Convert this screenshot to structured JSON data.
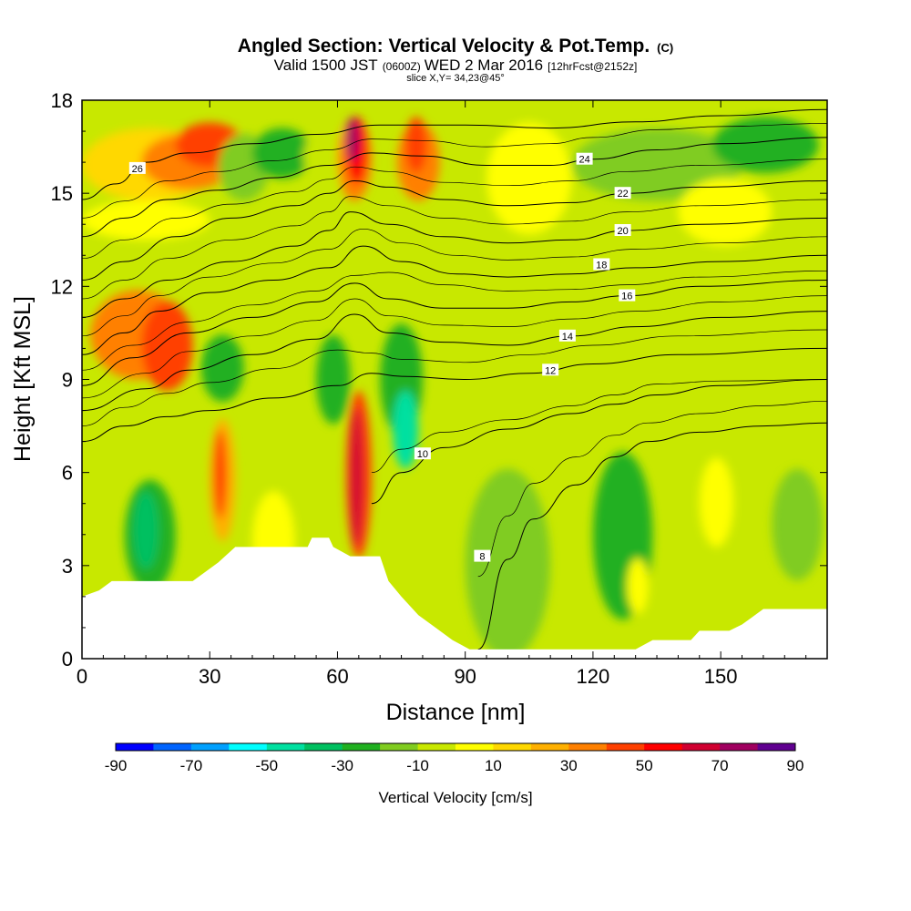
{
  "chart_data": {
    "type": "heatmap",
    "title": "Angled Section: Vertical Velocity & Pot.Temp.",
    "title_unit": "(C)",
    "subtitle_main": "Valid 1500 JST",
    "subtitle_utc": "(0600Z)",
    "subtitle_date": "WED 2 Mar 2016",
    "subtitle_fcst": "[12hrFcst@2152z]",
    "slice_label": "slice X,Y= 34,23@45°",
    "xlabel": "Distance [nm]",
    "ylabel": "Height [Kft MSL]",
    "xlim": [
      0,
      175
    ],
    "ylim": [
      0,
      18
    ],
    "xticks": [
      "0",
      "30",
      "60",
      "90",
      "120",
      "150"
    ],
    "xtick_values": [
      0,
      30,
      60,
      90,
      120,
      150
    ],
    "yticks": [
      "0",
      "3",
      "6",
      "9",
      "12",
      "15",
      "18"
    ],
    "ytick_values": [
      0,
      3,
      6,
      9,
      12,
      15,
      18
    ],
    "colorbar": {
      "label": "Vertical Velocity [cm/s]",
      "tick_labels": [
        "-90",
        "-70",
        "-50",
        "-30",
        "-10",
        "10",
        "30",
        "50",
        "70",
        "90"
      ],
      "tick_values": [
        -90,
        -70,
        -50,
        -30,
        -10,
        10,
        30,
        50,
        70,
        90
      ],
      "colors": [
        "#0000ff",
        "#0064ff",
        "#00a0ff",
        "#00ffff",
        "#00e0a0",
        "#00c060",
        "#20b020",
        "#80cc20",
        "#c8e800",
        "#ffff00",
        "#ffd800",
        "#ffb000",
        "#ff8000",
        "#ff4000",
        "#ff0000",
        "#d00030",
        "#a00060",
        "#600090"
      ]
    },
    "terrain": [
      [
        0,
        2.0
      ],
      [
        4,
        2.2
      ],
      [
        7,
        2.5
      ],
      [
        26,
        2.5
      ],
      [
        29,
        2.8
      ],
      [
        32,
        3.1
      ],
      [
        36,
        3.6
      ],
      [
        53,
        3.6
      ],
      [
        54,
        3.9
      ],
      [
        58,
        3.9
      ],
      [
        59,
        3.6
      ],
      [
        63,
        3.3
      ],
      [
        70,
        3.3
      ],
      [
        72,
        2.5
      ],
      [
        75,
        2.0
      ],
      [
        79,
        1.4
      ],
      [
        83,
        1.0
      ],
      [
        87,
        0.6
      ],
      [
        91,
        0.3
      ],
      [
        130,
        0.3
      ],
      [
        134,
        0.6
      ],
      [
        143,
        0.6
      ],
      [
        145,
        0.9
      ],
      [
        152,
        0.9
      ],
      [
        155,
        1.1
      ],
      [
        157,
        1.3
      ],
      [
        160,
        1.6
      ],
      [
        175,
        1.6
      ]
    ],
    "isentropes": [
      {
        "label": "8",
        "points": [
          [
            93,
            0.3
          ],
          [
            100,
            3.2
          ],
          [
            106,
            4.5
          ],
          [
            116,
            5.6
          ],
          [
            125,
            6.5
          ],
          [
            133,
            7.0
          ],
          [
            145,
            7.3
          ],
          [
            160,
            7.5
          ],
          [
            175,
            7.6
          ]
        ],
        "label_at": [
          94,
          3.3
        ]
      },
      {
        "label": "10",
        "points": [
          [
            68,
            5.0
          ],
          [
            75,
            6.0
          ],
          [
            85,
            6.8
          ],
          [
            100,
            7.4
          ],
          [
            115,
            7.9
          ],
          [
            125,
            8.2
          ],
          [
            135,
            8.5
          ],
          [
            150,
            8.8
          ],
          [
            175,
            9.0
          ]
        ],
        "label_at": [
          80,
          6.6
        ]
      },
      {
        "label": "12",
        "points": [
          [
            0,
            7.0
          ],
          [
            10,
            7.5
          ],
          [
            20,
            7.8
          ],
          [
            30,
            8.0
          ],
          [
            45,
            8.4
          ],
          [
            60,
            8.8
          ],
          [
            68,
            9.2
          ],
          [
            75,
            9.1
          ],
          [
            90,
            9.0
          ],
          [
            105,
            9.2
          ],
          [
            120,
            9.5
          ],
          [
            140,
            9.8
          ],
          [
            175,
            10.0
          ]
        ],
        "label_at": [
          110,
          9.3
        ]
      },
      {
        "label": "14",
        "points": [
          [
            0,
            8.0
          ],
          [
            15,
            8.7
          ],
          [
            25,
            9.3
          ],
          [
            40,
            9.8
          ],
          [
            55,
            10.3
          ],
          [
            64,
            11.1
          ],
          [
            72,
            10.5
          ],
          [
            85,
            10.2
          ],
          [
            100,
            10.1
          ],
          [
            115,
            10.4
          ],
          [
            130,
            10.7
          ],
          [
            150,
            11.0
          ],
          [
            175,
            11.2
          ]
        ],
        "label_at": [
          114,
          10.4
        ]
      },
      {
        "label": "16",
        "points": [
          [
            0,
            8.8
          ],
          [
            12,
            9.7
          ],
          [
            25,
            10.5
          ],
          [
            40,
            11.0
          ],
          [
            55,
            11.5
          ],
          [
            64,
            12.1
          ],
          [
            72,
            11.6
          ],
          [
            85,
            11.3
          ],
          [
            100,
            11.3
          ],
          [
            115,
            11.5
          ],
          [
            128,
            11.7
          ],
          [
            145,
            12.0
          ],
          [
            175,
            12.2
          ]
        ],
        "label_at": [
          128,
          11.7
        ]
      },
      {
        "label": "18",
        "points": [
          [
            0,
            9.8
          ],
          [
            10,
            10.5
          ],
          [
            18,
            11.2
          ],
          [
            30,
            11.8
          ],
          [
            45,
            12.2
          ],
          [
            58,
            12.6
          ],
          [
            66,
            13.3
          ],
          [
            75,
            12.8
          ],
          [
            88,
            12.4
          ],
          [
            100,
            12.3
          ],
          [
            115,
            12.4
          ],
          [
            130,
            12.6
          ],
          [
            150,
            12.8
          ],
          [
            175,
            13.0
          ]
        ],
        "label_at": [
          122,
          12.7
        ]
      },
      {
        "label": "20",
        "points": [
          [
            0,
            11.0
          ],
          [
            10,
            11.6
          ],
          [
            20,
            12.2
          ],
          [
            35,
            12.8
          ],
          [
            50,
            13.3
          ],
          [
            58,
            13.8
          ],
          [
            63,
            14.4
          ],
          [
            72,
            14.0
          ],
          [
            85,
            13.6
          ],
          [
            100,
            13.4
          ],
          [
            115,
            13.5
          ],
          [
            128,
            13.8
          ],
          [
            145,
            14.0
          ],
          [
            175,
            14.2
          ]
        ],
        "label_at": [
          127,
          13.8
        ]
      },
      {
        "label": "22",
        "points": [
          [
            0,
            12.2
          ],
          [
            10,
            12.8
          ],
          [
            22,
            13.6
          ],
          [
            35,
            14.2
          ],
          [
            50,
            14.6
          ],
          [
            58,
            15.0
          ],
          [
            64,
            15.4
          ],
          [
            72,
            15.2
          ],
          [
            85,
            14.8
          ],
          [
            100,
            14.6
          ],
          [
            115,
            14.7
          ],
          [
            128,
            15.0
          ],
          [
            145,
            15.2
          ],
          [
            175,
            15.4
          ]
        ],
        "label_at": [
          127,
          15.0
        ]
      },
      {
        "label": "24",
        "points": [
          [
            0,
            13.6
          ],
          [
            10,
            14.2
          ],
          [
            20,
            14.8
          ],
          [
            32,
            15.1
          ],
          [
            45,
            15.5
          ],
          [
            58,
            15.9
          ],
          [
            68,
            16.3
          ],
          [
            80,
            16.2
          ],
          [
            95,
            15.9
          ],
          [
            110,
            15.9
          ],
          [
            120,
            16.1
          ],
          [
            135,
            16.4
          ],
          [
            150,
            16.6
          ],
          [
            175,
            16.8
          ]
        ],
        "label_at": [
          118,
          16.1
        ]
      },
      {
        "label": "26",
        "points": [
          [
            0,
            14.8
          ],
          [
            8,
            15.3
          ],
          [
            15,
            16.0
          ],
          [
            25,
            16.3
          ],
          [
            40,
            16.6
          ],
          [
            55,
            16.9
          ],
          [
            70,
            17.2
          ],
          [
            90,
            17.2
          ],
          [
            110,
            17.1
          ],
          [
            130,
            17.3
          ],
          [
            150,
            17.5
          ],
          [
            175,
            17.7
          ]
        ],
        "label_at": [
          13,
          15.8
        ]
      }
    ]
  }
}
